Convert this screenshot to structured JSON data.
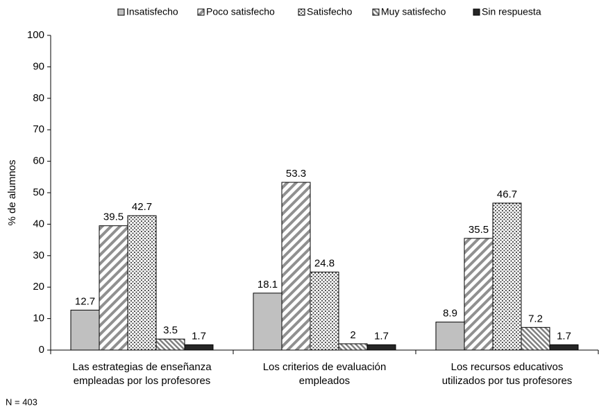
{
  "chart_data": {
    "type": "bar",
    "ylabel": "% de alumnos",
    "note": "N = 403",
    "categories": [
      [
        "Las estrategias de enseñanza",
        "empleadas por los profesores"
      ],
      [
        "Los criterios de evaluación",
        "empleados"
      ],
      [
        "Los recursos educativos",
        "utilizados por tus profesores"
      ]
    ],
    "series": [
      {
        "name": "Insatisfecho",
        "color": "#c0c0c0",
        "pattern": "solid",
        "values": [
          12.7,
          18.1,
          8.9
        ]
      },
      {
        "name": "Poco satisfecho",
        "color": "#909090",
        "pattern": "wide-diagonal",
        "values": [
          39.5,
          53.3,
          35.5
        ]
      },
      {
        "name": "Satisfecho",
        "color": "#404040",
        "pattern": "dots",
        "values": [
          42.7,
          24.8,
          46.7
        ]
      },
      {
        "name": "Muy satisfecho",
        "color": "#808080",
        "pattern": "back-diagonal",
        "values": [
          3.5,
          2,
          7.2
        ]
      },
      {
        "name": "Sin respuesta",
        "color": "#262626",
        "pattern": "solid",
        "values": [
          1.7,
          1.7,
          1.7
        ]
      }
    ],
    "ylim": [
      0,
      100
    ],
    "yticks": [
      0,
      10,
      20,
      30,
      40,
      50,
      60,
      70,
      80,
      90,
      100
    ],
    "grid": false,
    "data_labels": true,
    "legend": "top"
  }
}
